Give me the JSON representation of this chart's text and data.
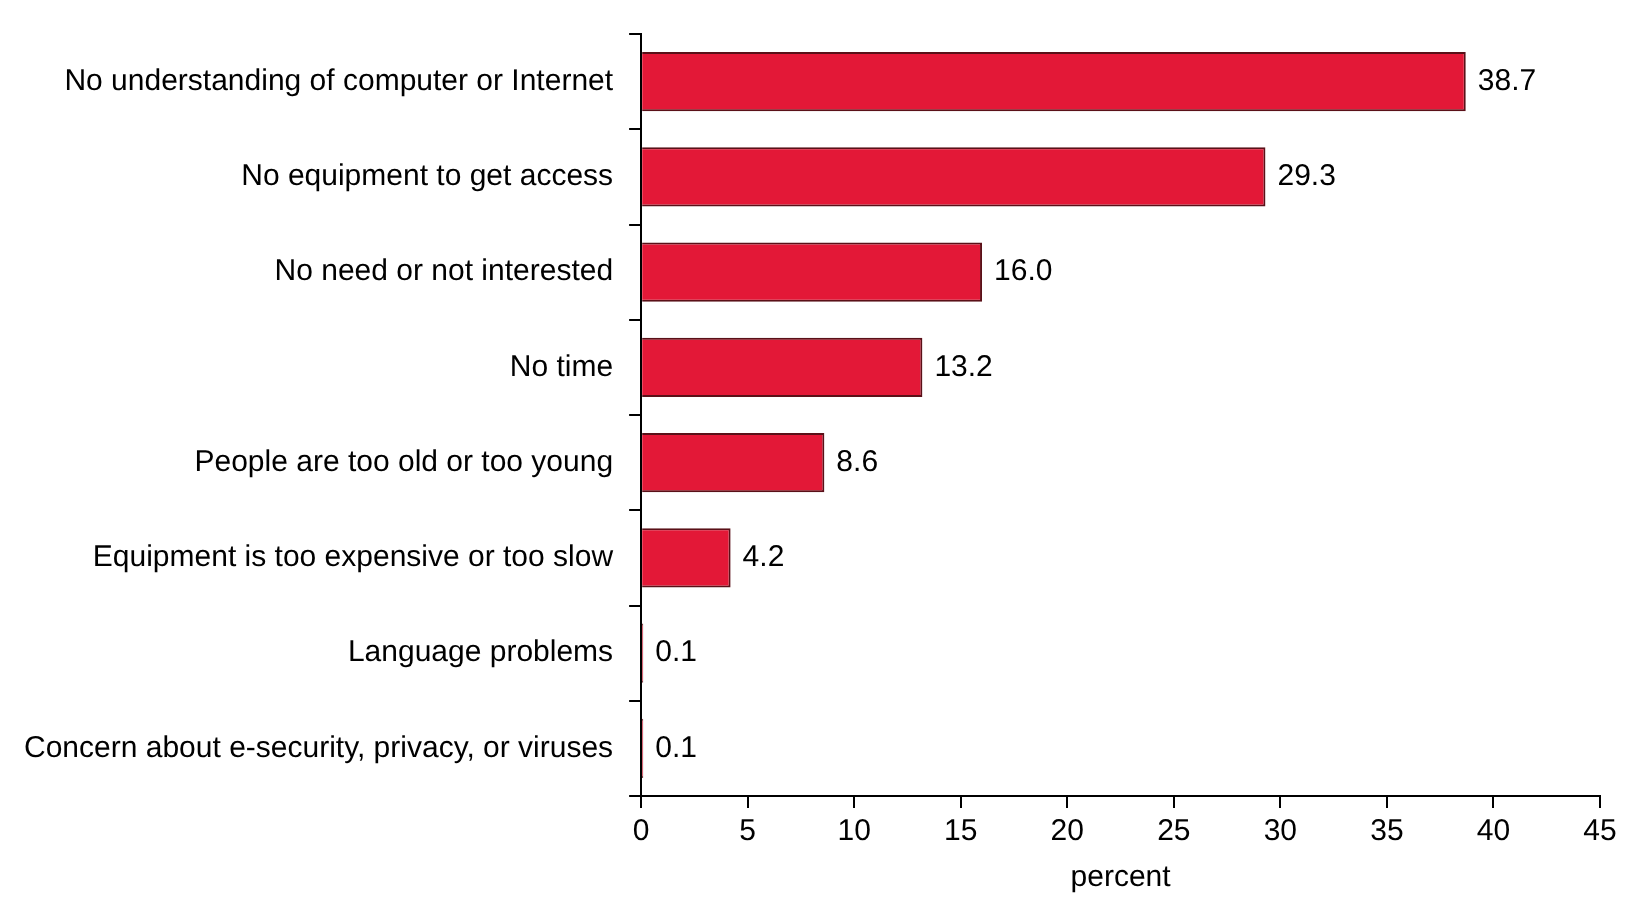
{
  "chart_data": {
    "type": "bar",
    "orientation": "horizontal",
    "xlabel": "percent",
    "categories": [
      "No understanding of computer or Internet",
      "No equipment to get access",
      "No need or not interested",
      "No time",
      "People are too old or too young",
      "Equipment is too expensive or too slow",
      "Language problems",
      "Concern about e-security, privacy, or viruses"
    ],
    "values": [
      38.7,
      29.3,
      16.0,
      13.2,
      8.6,
      4.2,
      0.1,
      0.1
    ],
    "value_labels": [
      "38.7",
      "29.3",
      "16.0",
      "13.2",
      "8.6",
      "4.2",
      "0.1",
      "0.1"
    ],
    "color": "#e31837",
    "xlim": [
      0,
      45
    ],
    "xticks": [
      0,
      5,
      10,
      15,
      20,
      25,
      30,
      35,
      40,
      45
    ],
    "grid": false,
    "legend": false
  }
}
